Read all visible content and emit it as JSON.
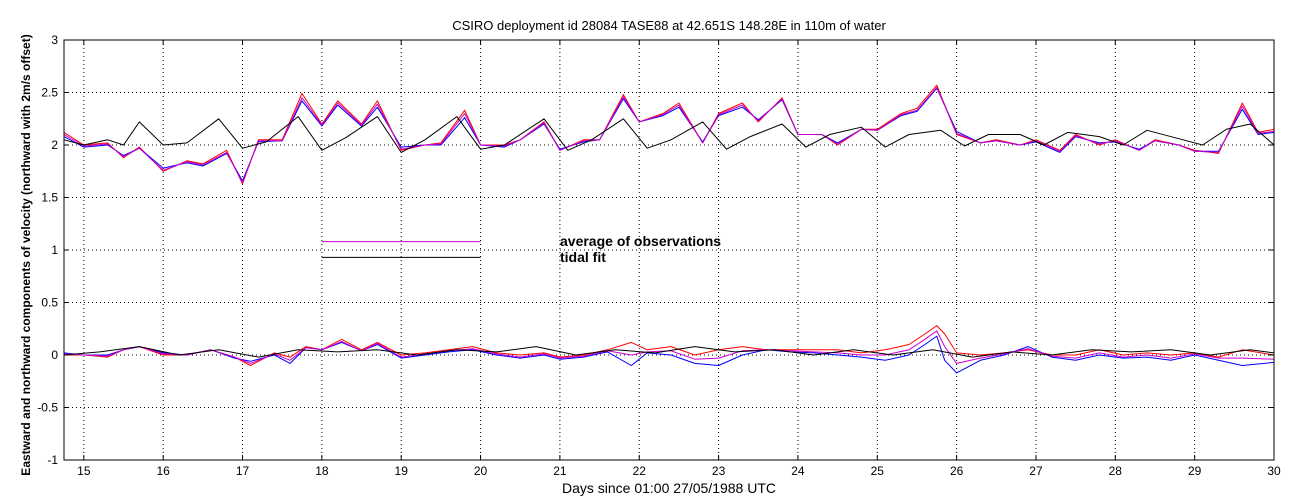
{
  "chart_data": {
    "type": "line",
    "title": "CSIRO deployment id 28084 TASE88 at 42.651S 148.28E in 110m of water",
    "xlabel": "Days since 01:00 27/05/1988 UTC",
    "ylabel": "Eastward  and northward components of velocity  (northward with 2m/s offset)",
    "xlim": [
      14.75,
      30
    ],
    "ylim": [
      -1,
      3
    ],
    "xticks": [
      15,
      16,
      17,
      18,
      19,
      20,
      21,
      22,
      23,
      24,
      25,
      26,
      27,
      28,
      29,
      30
    ],
    "yticks": [
      -1,
      -0.5,
      0,
      0.5,
      1,
      1.5,
      2,
      2.5,
      3
    ],
    "grid": true,
    "legend": {
      "placement": "center-left",
      "entries": [
        {
          "label": "average of observations",
          "color": "#cc00cc",
          "value": 1.08
        },
        {
          "label": "tidal fit",
          "color": "#000000",
          "value": 0.93
        }
      ],
      "x_range": [
        18,
        20
      ]
    },
    "series": [
      {
        "name": "northward observations red",
        "color": "#ff0000",
        "group": "north",
        "x": [
          14.75,
          15.0,
          15.3,
          15.5,
          15.7,
          16.0,
          16.3,
          16.5,
          16.8,
          17.0,
          17.2,
          17.5,
          17.75,
          18.0,
          18.2,
          18.5,
          18.7,
          19.0,
          19.3,
          19.5,
          19.8,
          20.0,
          20.3,
          20.5,
          20.8,
          21.0,
          21.3,
          21.5,
          21.8,
          22.0,
          22.3,
          22.5,
          22.8,
          23.0,
          23.3,
          23.5,
          23.8,
          24.0,
          24.3,
          24.5,
          24.8,
          25.0,
          25.3,
          25.5,
          25.75,
          26.0,
          26.3,
          26.5,
          26.8,
          27.0,
          27.3,
          27.5,
          27.8,
          28.0,
          28.3,
          28.5,
          28.8,
          29.0,
          29.3,
          29.6,
          29.8,
          30.0
        ],
        "values": [
          2.12,
          2.0,
          2.02,
          1.88,
          1.98,
          1.75,
          1.85,
          1.82,
          1.95,
          1.63,
          2.05,
          2.05,
          2.49,
          2.2,
          2.42,
          2.2,
          2.42,
          1.95,
          2.0,
          2.02,
          2.33,
          2.0,
          2.0,
          2.05,
          2.22,
          1.95,
          2.05,
          2.05,
          2.48,
          2.22,
          2.3,
          2.4,
          2.02,
          2.3,
          2.4,
          2.22,
          2.45,
          2.1,
          2.1,
          2.0,
          2.15,
          2.15,
          2.3,
          2.35,
          2.57,
          2.1,
          2.02,
          2.05,
          2.0,
          2.05,
          1.95,
          2.1,
          2.0,
          2.05,
          1.95,
          2.05,
          2.0,
          1.95,
          1.92,
          2.4,
          2.12,
          2.15
        ]
      },
      {
        "name": "northward observations blue",
        "color": "#0000ff",
        "group": "north",
        "x": [
          14.75,
          15.0,
          15.3,
          15.5,
          15.7,
          16.0,
          16.3,
          16.5,
          16.8,
          17.0,
          17.2,
          17.5,
          17.75,
          18.0,
          18.2,
          18.5,
          18.7,
          19.0,
          19.3,
          19.5,
          19.8,
          20.0,
          20.3,
          20.5,
          20.8,
          21.0,
          21.3,
          21.5,
          21.8,
          22.0,
          22.3,
          22.5,
          22.8,
          23.0,
          23.3,
          23.5,
          23.8,
          24.0,
          24.3,
          24.5,
          24.8,
          25.0,
          25.3,
          25.5,
          25.75,
          26.0,
          26.3,
          26.5,
          26.8,
          27.0,
          27.3,
          27.5,
          27.8,
          28.0,
          28.3,
          28.5,
          28.8,
          29.0,
          29.3,
          29.6,
          29.8,
          30.0
        ],
        "values": [
          2.08,
          1.98,
          2.0,
          1.9,
          1.97,
          1.78,
          1.83,
          1.8,
          1.92,
          1.66,
          2.03,
          2.04,
          2.42,
          2.18,
          2.38,
          2.18,
          2.36,
          1.98,
          2.0,
          2.0,
          2.26,
          2.0,
          1.98,
          2.05,
          2.2,
          1.96,
          2.03,
          2.05,
          2.44,
          2.22,
          2.28,
          2.36,
          2.03,
          2.28,
          2.36,
          2.24,
          2.43,
          2.1,
          2.1,
          2.02,
          2.15,
          2.14,
          2.28,
          2.32,
          2.54,
          2.13,
          2.02,
          2.04,
          2.0,
          2.03,
          1.93,
          2.08,
          2.02,
          2.03,
          1.96,
          2.04,
          2.0,
          1.94,
          1.94,
          2.34,
          2.1,
          2.12
        ]
      },
      {
        "name": "northward average of observations",
        "color": "#cc00cc",
        "group": "north",
        "x": [
          14.75,
          15.0,
          15.3,
          15.5,
          15.7,
          16.0,
          16.3,
          16.5,
          16.8,
          17.0,
          17.2,
          17.5,
          17.75,
          18.0,
          18.2,
          18.5,
          18.7,
          19.0,
          19.3,
          19.5,
          19.8,
          20.0,
          20.3,
          20.5,
          20.8,
          21.0,
          21.3,
          21.5,
          21.8,
          22.0,
          22.3,
          22.5,
          22.8,
          23.0,
          23.3,
          23.5,
          23.8,
          24.0,
          24.3,
          24.5,
          24.8,
          25.0,
          25.3,
          25.5,
          25.75,
          26.0,
          26.3,
          26.5,
          26.8,
          27.0,
          27.3,
          27.5,
          27.8,
          28.0,
          28.3,
          28.5,
          28.8,
          29.0,
          29.3,
          29.6,
          29.8,
          30.0
        ],
        "values": [
          2.1,
          1.99,
          2.01,
          1.89,
          1.97,
          1.76,
          1.84,
          1.81,
          1.93,
          1.64,
          2.04,
          2.04,
          2.45,
          2.19,
          2.4,
          2.19,
          2.39,
          1.96,
          2.0,
          2.01,
          2.3,
          2.0,
          1.99,
          2.05,
          2.21,
          1.95,
          2.04,
          2.05,
          2.46,
          2.22,
          2.29,
          2.38,
          2.02,
          2.29,
          2.38,
          2.23,
          2.44,
          2.1,
          2.1,
          2.01,
          2.15,
          2.14,
          2.29,
          2.33,
          2.55,
          2.11,
          2.02,
          2.04,
          2.0,
          2.04,
          1.94,
          2.09,
          2.01,
          2.04,
          1.95,
          2.04,
          2.0,
          1.94,
          1.93,
          2.37,
          2.11,
          2.13
        ]
      },
      {
        "name": "northward tidal fit",
        "color": "#000000",
        "group": "north",
        "x": [
          14.75,
          15.0,
          15.3,
          15.5,
          15.7,
          16.0,
          16.3,
          16.7,
          17.0,
          17.3,
          17.7,
          18.0,
          18.3,
          18.7,
          19.0,
          19.3,
          19.7,
          20.0,
          20.3,
          20.8,
          21.1,
          21.4,
          21.8,
          22.1,
          22.4,
          22.8,
          23.1,
          23.4,
          23.8,
          24.1,
          24.4,
          24.8,
          25.1,
          25.4,
          25.8,
          26.1,
          26.4,
          26.8,
          27.1,
          27.4,
          27.8,
          28.1,
          28.4,
          28.8,
          29.1,
          29.4,
          29.7,
          30.0
        ],
        "values": [
          2.05,
          2.0,
          2.05,
          2.0,
          2.22,
          2.0,
          2.02,
          2.25,
          1.97,
          2.03,
          2.27,
          1.95,
          2.07,
          2.27,
          1.93,
          2.05,
          2.27,
          1.96,
          2.0,
          2.25,
          1.95,
          2.05,
          2.25,
          1.97,
          2.05,
          2.22,
          1.96,
          2.08,
          2.2,
          1.98,
          2.1,
          2.17,
          1.98,
          2.1,
          2.14,
          1.99,
          2.1,
          2.1,
          2.0,
          2.12,
          2.08,
          2.0,
          2.14,
          2.06,
          2.0,
          2.15,
          2.2,
          2.0
        ]
      },
      {
        "name": "eastward observations red",
        "color": "#ff0000",
        "group": "east",
        "x": [
          14.75,
          15.0,
          15.3,
          15.5,
          15.7,
          16.0,
          16.3,
          16.6,
          16.9,
          17.1,
          17.4,
          17.6,
          17.8,
          18.0,
          18.25,
          18.5,
          18.7,
          19.0,
          19.3,
          19.6,
          19.9,
          20.2,
          20.5,
          20.8,
          21.0,
          21.3,
          21.6,
          21.9,
          22.1,
          22.4,
          22.7,
          23.0,
          23.3,
          23.6,
          23.9,
          24.2,
          24.5,
          24.8,
          25.1,
          25.4,
          25.6,
          25.75,
          25.85,
          26.0,
          26.3,
          26.6,
          26.9,
          27.2,
          27.5,
          27.8,
          28.1,
          28.4,
          28.7,
          29.0,
          29.3,
          29.6,
          30.0
        ],
        "values": [
          0.0,
          0.0,
          -0.02,
          0.05,
          0.08,
          0.0,
          0.0,
          0.05,
          -0.02,
          -0.1,
          0.02,
          -0.02,
          0.08,
          0.05,
          0.15,
          0.05,
          0.12,
          0.0,
          0.02,
          0.05,
          0.08,
          0.02,
          0.0,
          0.02,
          -0.02,
          0.0,
          0.05,
          0.12,
          0.05,
          0.08,
          0.0,
          0.05,
          0.08,
          0.05,
          0.05,
          0.05,
          0.05,
          0.02,
          0.05,
          0.1,
          0.2,
          0.28,
          0.2,
          0.02,
          0.0,
          0.02,
          0.05,
          0.0,
          0.0,
          0.05,
          0.0,
          0.02,
          0.0,
          0.02,
          -0.02,
          0.05,
          0.0
        ]
      },
      {
        "name": "eastward observations blue",
        "color": "#0000ff",
        "group": "east",
        "x": [
          14.75,
          15.0,
          15.3,
          15.5,
          15.7,
          16.0,
          16.3,
          16.6,
          16.9,
          17.1,
          17.4,
          17.6,
          17.8,
          18.0,
          18.25,
          18.5,
          18.7,
          19.0,
          19.3,
          19.6,
          19.9,
          20.2,
          20.5,
          20.8,
          21.0,
          21.3,
          21.6,
          21.9,
          22.1,
          22.4,
          22.7,
          23.0,
          23.3,
          23.6,
          23.9,
          24.2,
          24.5,
          24.8,
          25.1,
          25.4,
          25.6,
          25.75,
          25.85,
          26.0,
          26.3,
          26.6,
          26.9,
          27.2,
          27.5,
          27.8,
          28.1,
          28.4,
          28.7,
          29.0,
          29.3,
          29.6,
          30.0
        ],
        "values": [
          0.02,
          0.0,
          0.0,
          0.05,
          0.08,
          0.02,
          0.0,
          0.05,
          -0.03,
          -0.06,
          0.0,
          -0.08,
          0.07,
          0.05,
          0.12,
          0.04,
          0.1,
          -0.03,
          0.0,
          0.03,
          0.05,
          0.0,
          -0.03,
          0.0,
          -0.04,
          -0.02,
          0.03,
          -0.1,
          0.02,
          0.0,
          -0.08,
          -0.1,
          0.0,
          0.05,
          0.03,
          0.02,
          0.0,
          -0.02,
          -0.05,
          0.0,
          0.1,
          0.18,
          -0.05,
          -0.17,
          -0.05,
          0.0,
          0.08,
          -0.02,
          -0.05,
          0.0,
          -0.03,
          -0.02,
          -0.05,
          0.0,
          -0.05,
          -0.1,
          -0.07
        ]
      },
      {
        "name": "eastward average of observations",
        "color": "#cc00cc",
        "group": "east",
        "x": [
          14.75,
          15.0,
          15.3,
          15.5,
          15.7,
          16.0,
          16.3,
          16.6,
          16.9,
          17.1,
          17.4,
          17.6,
          17.8,
          18.0,
          18.25,
          18.5,
          18.7,
          19.0,
          19.3,
          19.6,
          19.9,
          20.2,
          20.5,
          20.8,
          21.0,
          21.3,
          21.6,
          21.9,
          22.1,
          22.4,
          22.7,
          23.0,
          23.3,
          23.6,
          23.9,
          24.2,
          24.5,
          24.8,
          25.1,
          25.4,
          25.6,
          25.75,
          25.85,
          26.0,
          26.3,
          26.6,
          26.9,
          27.2,
          27.5,
          27.8,
          28.1,
          28.4,
          28.7,
          29.0,
          29.3,
          29.6,
          30.0
        ],
        "values": [
          0.01,
          0.0,
          -0.01,
          0.05,
          0.08,
          0.01,
          0.0,
          0.05,
          -0.02,
          -0.08,
          0.01,
          -0.05,
          0.07,
          0.05,
          0.13,
          0.04,
          0.11,
          -0.02,
          0.01,
          0.04,
          0.06,
          0.01,
          -0.02,
          0.01,
          -0.03,
          -0.01,
          0.04,
          0.0,
          0.03,
          0.04,
          -0.04,
          -0.03,
          0.04,
          0.05,
          0.04,
          0.03,
          0.02,
          0.0,
          0.0,
          0.05,
          0.15,
          0.23,
          0.08,
          -0.08,
          -0.03,
          0.01,
          0.06,
          -0.01,
          -0.03,
          0.02,
          -0.02,
          0.0,
          -0.03,
          0.01,
          -0.03,
          -0.03,
          -0.04
        ]
      },
      {
        "name": "eastward tidal fit",
        "color": "#000000",
        "group": "east",
        "x": [
          14.75,
          15.2,
          15.7,
          16.2,
          16.7,
          17.2,
          17.7,
          18.2,
          18.7,
          19.2,
          19.7,
          20.2,
          20.7,
          21.2,
          21.7,
          22.2,
          22.7,
          23.2,
          23.7,
          24.2,
          24.7,
          25.2,
          25.7,
          26.2,
          26.7,
          27.2,
          27.7,
          28.2,
          28.7,
          29.2,
          29.7,
          30.0
        ],
        "values": [
          0.0,
          0.03,
          0.08,
          0.0,
          0.05,
          -0.02,
          0.05,
          0.03,
          0.05,
          0.0,
          0.05,
          0.03,
          0.08,
          0.0,
          0.05,
          0.02,
          0.08,
          0.03,
          0.05,
          0.0,
          0.05,
          0.0,
          0.05,
          -0.02,
          0.03,
          0.0,
          0.05,
          0.03,
          0.05,
          0.0,
          0.05,
          0.02
        ]
      }
    ]
  }
}
